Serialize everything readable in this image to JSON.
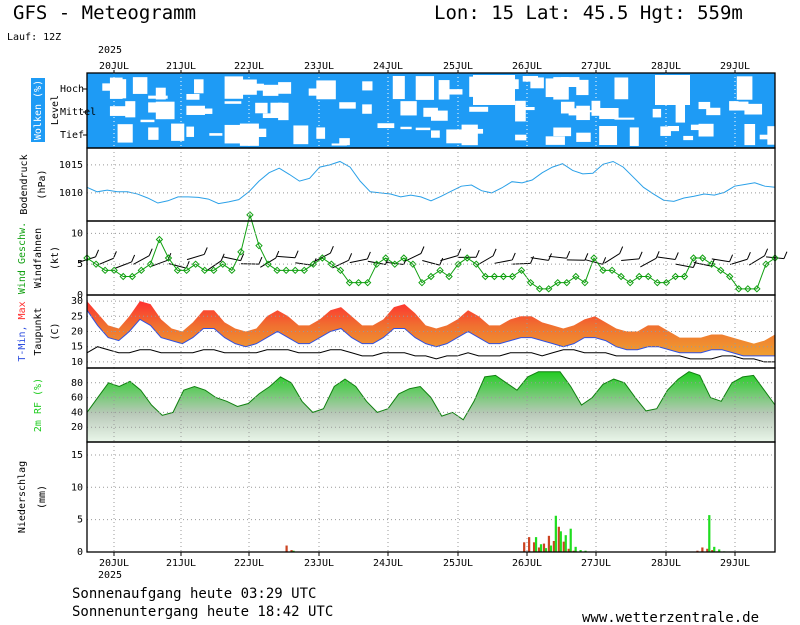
{
  "header": {
    "title": "GFS - Meteogramm",
    "location": "Lon: 15 Lat: 45.5 Hgt: 559m",
    "run": "Lauf: 12Z",
    "year_top": "2025",
    "year_bottom": "2025"
  },
  "footer": {
    "sunrise": "Sonnenaufgang heute 03:29 UTC",
    "sunset": "Sonnenuntergang heute 18:42 UTC",
    "site": "www.wetterzentrale.de"
  },
  "colors": {
    "clouds": "#1e9bf5",
    "pressure_line": "#2aa0e8",
    "wind_line": "#10a010",
    "rain_green": "#20dd20",
    "rain_red": "#cc4422",
    "rh_green": "#22cc22",
    "temp_red": "#ff3030",
    "temp_orange": "#f0a030",
    "temp_blue": "#3050e0"
  },
  "chart_data": {
    "type": "line",
    "dates": [
      "20JUL",
      "21JUL",
      "22JUL",
      "23JUL",
      "24JUL",
      "25JUL",
      "26JUL",
      "27JUL",
      "28JUL",
      "29JUL"
    ],
    "panels": [
      {
        "id": "clouds",
        "label_main": "Wolken (%)",
        "label_sub": "Level",
        "levels": [
          "Hoch",
          "Mittel",
          "Tief"
        ]
      },
      {
        "id": "pressure",
        "label_main": "Bodendruck",
        "label_sub": "(hPa)",
        "yticks": [
          "1015",
          "1010"
        ],
        "ylim": [
          1005,
          1018
        ],
        "values": [
          1011,
          1010.2,
          1010.5,
          1010.2,
          1010.2,
          1009.8,
          1009.1,
          1008.2,
          1008.6,
          1009.3,
          1009.3,
          1009.2,
          1008.9,
          1008.1,
          1008.4,
          1008.8,
          1010.2,
          1012.1,
          1013.6,
          1014.4,
          1013.3,
          1012.1,
          1012.6,
          1014.6,
          1015,
          1015.6,
          1014.6,
          1012.1,
          1010.2,
          1010,
          1009.8,
          1009.3,
          1009.6,
          1009.3,
          1008.6,
          1009.4,
          1010.3,
          1011.2,
          1011.4,
          1010.4,
          1010,
          1010.9,
          1012,
          1011.8,
          1012.3,
          1013.6,
          1014.6,
          1015.2,
          1014,
          1013.4,
          1013.5,
          1015.1,
          1015.6,
          1014.6,
          1012.8,
          1011,
          1009.8,
          1008.7,
          1008.5,
          1009.1,
          1009.4,
          1009.8,
          1009.6,
          1010.1,
          1011.2,
          1011.5,
          1011.8,
          1011.2,
          1011
        ]
      },
      {
        "id": "wind",
        "label_main": "Wind Geschw.",
        "label_sub": "Windfahnen",
        "unit": "(kt)",
        "yticks": [
          "10",
          "5",
          "0"
        ],
        "ylim": [
          0,
          12
        ],
        "values": [
          6,
          5,
          4,
          4,
          3,
          3,
          4,
          5,
          9,
          6,
          4,
          4,
          5,
          4,
          4,
          5,
          4,
          7,
          13,
          8,
          5,
          4,
          4,
          4,
          4,
          5,
          6,
          5,
          4,
          2,
          2,
          2,
          5,
          6,
          5,
          6,
          5,
          2,
          3,
          4,
          3,
          5,
          6,
          5,
          3,
          3,
          3,
          3,
          4,
          2,
          1,
          1,
          2,
          2,
          3,
          2,
          6,
          4,
          4,
          3,
          2,
          3,
          3,
          2,
          2,
          3,
          3,
          6,
          6,
          5,
          4,
          3,
          1,
          1,
          1,
          5,
          6
        ]
      },
      {
        "id": "temperature",
        "label_main": "T-Min, Max",
        "label_sub": "Taupunkt",
        "unit": "(C)",
        "yticks": [
          "30",
          "25",
          "20",
          "15",
          "10"
        ],
        "ylim": [
          8,
          32
        ],
        "tmin": [
          27,
          22,
          18,
          17,
          20,
          24,
          22,
          18,
          17,
          16,
          18,
          21,
          21,
          18,
          16,
          15,
          16,
          18,
          20,
          18,
          16,
          16,
          18,
          20,
          21,
          18,
          16,
          16,
          18,
          21,
          21,
          18,
          16,
          15,
          16,
          18,
          20,
          18,
          16,
          16,
          17,
          18,
          18,
          17,
          16,
          15,
          16,
          18,
          18,
          17,
          15,
          14,
          14,
          15,
          15,
          14,
          13,
          13,
          13,
          14,
          14,
          13,
          12,
          12,
          12,
          12
        ],
        "tmax": [
          30,
          26,
          22,
          21,
          25,
          30,
          29,
          24,
          21,
          20,
          23,
          27,
          27,
          23,
          21,
          20,
          21,
          25,
          27,
          25,
          22,
          22,
          24,
          27,
          28,
          25,
          22,
          22,
          24,
          28,
          29,
          26,
          22,
          21,
          22,
          24,
          27,
          25,
          22,
          22,
          24,
          25,
          25,
          23,
          22,
          21,
          22,
          24,
          25,
          23,
          21,
          20,
          20,
          22,
          22,
          20,
          18,
          18,
          18,
          19,
          19,
          18,
          17,
          16,
          17,
          19
        ],
        "dew": [
          13,
          15,
          14,
          13,
          13,
          14,
          14,
          13,
          13,
          13,
          13,
          14,
          14,
          13,
          13,
          13,
          13,
          14,
          14,
          14,
          13,
          13,
          13,
          14,
          14,
          13,
          12,
          12,
          13,
          13,
          13,
          12,
          12,
          11,
          12,
          12,
          13,
          12,
          12,
          12,
          13,
          13,
          13,
          12,
          13,
          14,
          14,
          13,
          13,
          13,
          12,
          12,
          12,
          12,
          12,
          12,
          12,
          11,
          11,
          11,
          12,
          12,
          11,
          11,
          10,
          10
        ]
      },
      {
        "id": "humidity",
        "label_main": "2m RF (%)",
        "yticks": [
          "80",
          "60",
          "40",
          "20"
        ],
        "ylim": [
          0,
          100
        ],
        "values": [
          40,
          60,
          80,
          75,
          82,
          70,
          50,
          36,
          40,
          70,
          75,
          70,
          60,
          55,
          48,
          52,
          65,
          75,
          88,
          80,
          55,
          40,
          45,
          75,
          85,
          75,
          55,
          40,
          45,
          65,
          72,
          75,
          60,
          35,
          40,
          30,
          55,
          88,
          90,
          80,
          70,
          88,
          95,
          95,
          95,
          75,
          50,
          60,
          78,
          85,
          80,
          60,
          42,
          45,
          70,
          85,
          95,
          90,
          60,
          55,
          80,
          88,
          90,
          70,
          50
        ]
      },
      {
        "id": "precip",
        "label_main": "Niederschlag",
        "label_sub": "(mm)",
        "yticks": [
          "15",
          "10",
          "5",
          "0"
        ],
        "ylim": [
          0,
          17
        ],
        "green": [
          0,
          0,
          0,
          0,
          0,
          0,
          0,
          0,
          0,
          0,
          0,
          0,
          0,
          0,
          0,
          0,
          0,
          0,
          0,
          0,
          0,
          0,
          0,
          0,
          0,
          0,
          0,
          0,
          0,
          0,
          0,
          0,
          0,
          0,
          0,
          0,
          0,
          0,
          0,
          0,
          0,
          0.2,
          0,
          0,
          0,
          0,
          0,
          0,
          0,
          0,
          0,
          0,
          0,
          0,
          0,
          0,
          0,
          0,
          0,
          0,
          0,
          0,
          0,
          0,
          0,
          0,
          0,
          0,
          0,
          0,
          0,
          0,
          0,
          0,
          0,
          0,
          0,
          0,
          0,
          0,
          0,
          0,
          0,
          0,
          0,
          0,
          0,
          0,
          0,
          0,
          2.3,
          1.2,
          0.6,
          1,
          5.6,
          3.2,
          2.6,
          3.6,
          0.8,
          0.3,
          0.2,
          0,
          0,
          0,
          0,
          0,
          0,
          0,
          0,
          0,
          0,
          0,
          0,
          0,
          0,
          0,
          0,
          0,
          0,
          0,
          0,
          0,
          0,
          0,
          0,
          5.7,
          0.8,
          0.4,
          0.1,
          0,
          0,
          0,
          0,
          0,
          0,
          0,
          0,
          0,
          0
        ],
        "red": [
          0,
          0,
          0,
          0,
          0,
          0,
          0,
          0,
          0,
          0,
          0,
          0,
          0,
          0,
          0,
          0,
          0,
          0,
          0,
          0,
          0,
          0,
          0,
          0,
          0,
          0,
          0,
          0,
          0,
          0,
          0,
          0,
          0,
          0,
          0,
          0,
          0,
          0,
          0,
          0,
          1,
          0.3,
          0,
          0,
          0,
          0,
          0,
          0,
          0,
          0,
          0,
          0,
          0,
          0,
          0,
          0,
          0,
          0,
          0,
          0,
          0,
          0,
          0,
          0,
          0,
          0,
          0,
          0,
          0,
          0,
          0,
          0,
          0,
          0,
          0,
          0,
          0,
          0,
          0,
          0,
          0,
          0,
          0,
          0,
          0,
          0,
          0,
          0,
          1.5,
          2.3,
          1.5,
          0.7,
          1.3,
          2.5,
          1.7,
          3.9,
          1.6,
          0.5,
          0.2,
          0,
          0,
          0,
          0,
          0,
          0,
          0,
          0,
          0,
          0,
          0,
          0,
          0,
          0,
          0,
          0,
          0,
          0,
          0,
          0,
          0,
          0,
          0,
          0,
          0.2,
          0.7,
          0.5,
          0.3,
          0.1,
          0,
          0,
          0,
          0,
          0,
          0,
          0,
          0,
          0,
          0
        ]
      }
    ]
  }
}
